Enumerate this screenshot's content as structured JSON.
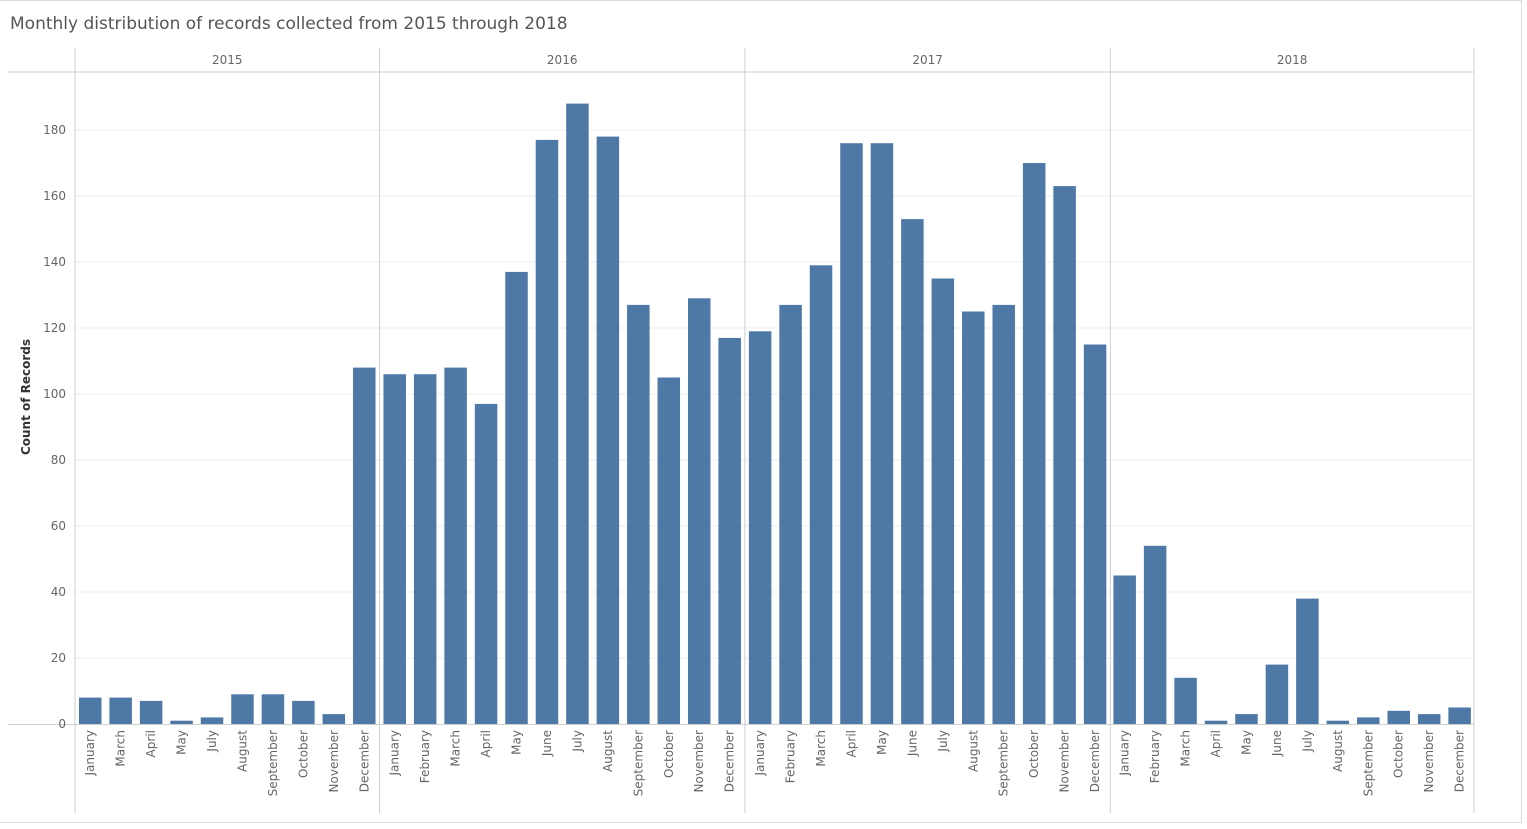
{
  "chart_data": {
    "type": "bar",
    "title": "Monthly distribution of records collected from 2015 through 2018",
    "ylabel": "Count of Records",
    "xlabel": "",
    "ylim": [
      0,
      200
    ],
    "yticks": [
      0,
      20,
      40,
      60,
      80,
      100,
      120,
      140,
      160,
      180
    ],
    "grid": true,
    "bar_color": "#4e79a7",
    "panels": [
      {
        "year": "2015",
        "categories": [
          "January",
          "March",
          "April",
          "May",
          "July",
          "August",
          "September",
          "October",
          "November",
          "December"
        ],
        "values": [
          8,
          8,
          7,
          1,
          2,
          9,
          9,
          7,
          3,
          108
        ]
      },
      {
        "year": "2016",
        "categories": [
          "January",
          "February",
          "March",
          "April",
          "May",
          "June",
          "July",
          "August",
          "September",
          "October",
          "November",
          "December"
        ],
        "values": [
          106,
          106,
          108,
          97,
          137,
          177,
          188,
          178,
          127,
          105,
          129,
          117
        ]
      },
      {
        "year": "2017",
        "categories": [
          "January",
          "February",
          "March",
          "April",
          "May",
          "June",
          "July",
          "August",
          "September",
          "October",
          "November",
          "December"
        ],
        "values": [
          119,
          127,
          139,
          176,
          176,
          153,
          135,
          125,
          127,
          170,
          163,
          115
        ]
      },
      {
        "year": "2018",
        "categories": [
          "January",
          "February",
          "March",
          "April",
          "May",
          "June",
          "July",
          "August",
          "September",
          "October",
          "November",
          "December"
        ],
        "values": [
          45,
          54,
          14,
          1,
          3,
          18,
          38,
          1,
          2,
          4,
          3,
          5
        ]
      }
    ]
  }
}
